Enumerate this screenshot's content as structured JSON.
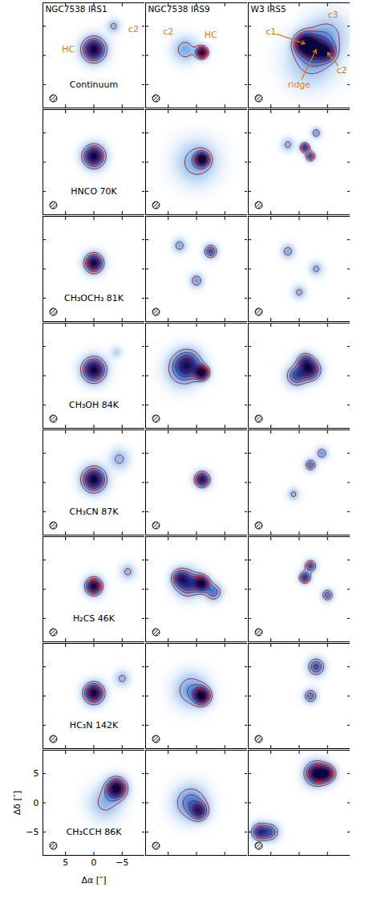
{
  "chart_data": {
    "type": "map",
    "columns": [
      "NGC7538 IRS1",
      "NGC7538 IRS9",
      "W3 IRS5"
    ],
    "rows": [
      "Continuum",
      "HNCO 70K",
      "CH₃OCH₃ 81K",
      "CH₃OH 84K",
      "CH₃CN 87K",
      "H₂CS 46K",
      "HC₃N 142K",
      "CH₃CCH 86K"
    ],
    "xlabel": "Δα [″]",
    "ylabel": "Δδ [″]",
    "xlim": [
      9,
      -9
    ],
    "ylim": [
      -9,
      9
    ],
    "xticks": [
      5,
      0,
      -5
    ],
    "yticks": [
      5,
      0,
      -5
    ],
    "contour_levels": [
      0.25,
      0.4,
      0.55,
      0.7,
      0.85
    ],
    "panels": [
      [
        [
          {
            "x": 0,
            "y": 1,
            "peak": 1,
            "width": 1.4,
            "label": "HC"
          },
          {
            "x": -3.5,
            "y": 5,
            "peak": 0.3,
            "width": 0.8,
            "label": "c2"
          }
        ],
        [
          {
            "x": 2,
            "y": 1,
            "peak": 0.35,
            "width": 1.5,
            "label": "c2"
          },
          {
            "x": -1,
            "y": 0.5,
            "peak": 1,
            "width": 0.7,
            "label": "HC"
          }
        ],
        [
          {
            "x": -1,
            "y": 2,
            "peak": 1,
            "width": 1.2,
            "label": "c1"
          },
          {
            "x": -5,
            "y": 3.5,
            "peak": 0.3,
            "width": 2.5,
            "label": "c3"
          },
          {
            "x": -5,
            "y": 0.5,
            "peak": 0.5,
            "width": 1.0,
            "label": "c2"
          },
          {
            "x": -3,
            "y": 1,
            "peak": 0.6,
            "width": 1.5,
            "label": "ridge"
          },
          {
            "x": -2,
            "y": -1,
            "peak": 0.3,
            "width": 3
          }
        ]
      ],
      [
        [
          {
            "x": 0,
            "y": 1,
            "peak": 1,
            "width": 1.3
          }
        ],
        [
          {
            "x": -1,
            "y": 0.5,
            "peak": 0.9,
            "width": 0.8
          },
          {
            "x": 0,
            "y": 0,
            "peak": 0.35,
            "width": 2.5
          }
        ],
        [
          {
            "x": -1,
            "y": 2.5,
            "peak": 0.7,
            "width": 0.6
          },
          {
            "x": -2,
            "y": 1,
            "peak": 0.6,
            "width": 0.6
          },
          {
            "x": -3,
            "y": 5,
            "peak": 0.4,
            "width": 0.6
          },
          {
            "x": 2,
            "y": 3,
            "peak": 0.3,
            "width": 0.8
          }
        ]
      ],
      [
        [
          {
            "x": 0,
            "y": 1,
            "peak": 1,
            "width": 1.1
          }
        ],
        [
          {
            "x": -2.5,
            "y": 3,
            "peak": 0.6,
            "width": 0.8
          },
          {
            "x": 0,
            "y": -2,
            "peak": 0.4,
            "width": 0.8
          },
          {
            "x": 3,
            "y": 4,
            "peak": 0.35,
            "width": 0.8
          }
        ],
        [
          {
            "x": 2,
            "y": 3,
            "peak": 0.35,
            "width": 0.8
          },
          {
            "x": -3,
            "y": 0,
            "peak": 0.3,
            "width": 0.8
          },
          {
            "x": 0,
            "y": -4,
            "peak": 0.3,
            "width": 0.8
          }
        ]
      ],
      [
        [
          {
            "x": 0,
            "y": 1,
            "peak": 1,
            "width": 1.4
          },
          {
            "x": -4,
            "y": 4,
            "peak": 0.2,
            "width": 0.7
          }
        ],
        [
          {
            "x": -1,
            "y": 0.5,
            "peak": 1,
            "width": 0.8
          },
          {
            "x": 1.5,
            "y": 2,
            "peak": 0.6,
            "width": 1.6
          },
          {
            "x": 2.5,
            "y": 1,
            "peak": 0.4,
            "width": 2
          }
        ],
        [
          {
            "x": -2,
            "y": 1,
            "peak": 0.8,
            "width": 1.2
          },
          {
            "x": 0.5,
            "y": 0,
            "peak": 0.6,
            "width": 1.2
          },
          {
            "x": -1,
            "y": 2.5,
            "peak": 0.5,
            "width": 1
          }
        ]
      ],
      [
        [
          {
            "x": 0,
            "y": 0.5,
            "peak": 1,
            "width": 1.4
          },
          {
            "x": -4.5,
            "y": 4,
            "peak": 0.3,
            "width": 1.2
          }
        ],
        [
          {
            "x": -1,
            "y": 0.5,
            "peak": 0.9,
            "width": 0.9
          }
        ],
        [
          {
            "x": -2,
            "y": 3,
            "peak": 0.5,
            "width": 0.7
          },
          {
            "x": -4,
            "y": 5,
            "peak": 0.4,
            "width": 0.7
          },
          {
            "x": 1,
            "y": -2,
            "peak": 0.3,
            "width": 0.7
          }
        ]
      ],
      [
        [
          {
            "x": 0,
            "y": 0.5,
            "peak": 1,
            "width": 1.0
          },
          {
            "x": -6,
            "y": 3,
            "peak": 0.3,
            "width": 0.9
          }
        ],
        [
          {
            "x": 1.5,
            "y": 1,
            "peak": 0.7,
            "width": 1.5
          },
          {
            "x": -1,
            "y": 1,
            "peak": 0.9,
            "width": 0.9
          },
          {
            "x": 3,
            "y": 2,
            "peak": 0.5,
            "width": 1
          },
          {
            "x": -3,
            "y": -0.5,
            "peak": 0.5,
            "width": 1
          }
        ],
        [
          {
            "x": -1,
            "y": 2,
            "peak": 0.7,
            "width": 0.7
          },
          {
            "x": -2,
            "y": 4,
            "peak": 0.6,
            "width": 0.7
          },
          {
            "x": -5,
            "y": -1,
            "peak": 0.5,
            "width": 0.7
          }
        ]
      ],
      [
        [
          {
            "x": 0,
            "y": 0.5,
            "peak": 1,
            "width": 1.2
          },
          {
            "x": -5,
            "y": 3,
            "peak": 0.3,
            "width": 0.9
          }
        ],
        [
          {
            "x": -1,
            "y": 0,
            "peak": 0.9,
            "width": 1
          },
          {
            "x": 1,
            "y": 1,
            "peak": 0.4,
            "width": 2
          }
        ],
        [
          {
            "x": -3,
            "y": 5,
            "peak": 0.6,
            "width": 1
          },
          {
            "x": -2,
            "y": 0,
            "peak": 0.5,
            "width": 0.8
          }
        ]
      ],
      [
        [
          {
            "x": -4,
            "y": 2.5,
            "peak": 1,
            "width": 1.2
          },
          {
            "x": -2,
            "y": 0,
            "peak": 0.3,
            "width": 2
          }
        ],
        [
          {
            "x": 1,
            "y": 0,
            "peak": 0.5,
            "width": 2
          },
          {
            "x": -0.5,
            "y": -1.5,
            "peak": 0.6,
            "width": 1
          }
        ],
        [
          {
            "x": -3,
            "y": 5,
            "peak": 1,
            "width": 1.3
          },
          {
            "x": -5,
            "y": 5,
            "peak": 0.7,
            "width": 1
          },
          {
            "x": 7,
            "y": -5,
            "peak": 0.7,
            "width": 1
          },
          {
            "x": 5,
            "y": -5,
            "peak": 0.5,
            "width": 1
          }
        ]
      ]
    ]
  }
}
